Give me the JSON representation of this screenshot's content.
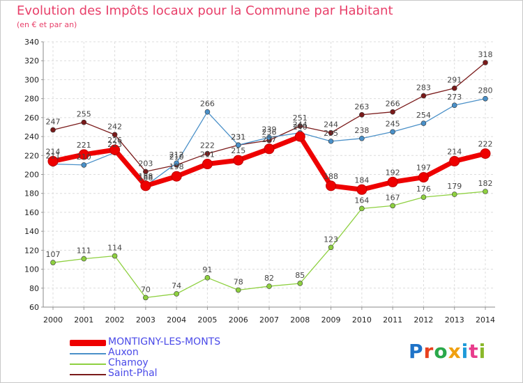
{
  "header": {
    "title": "Evolution des Impôts locaux pour la Commune par Habitant",
    "subtitle": "(en € et par an)"
  },
  "logo": {
    "text": "Proxiti",
    "colors": [
      "#1e73c8",
      "#e8401e",
      "#2aa84a",
      "#f0a010",
      "#1e9ad8",
      "#e83c8c",
      "#8ab82a"
    ]
  },
  "chart_data": {
    "type": "line",
    "x": [
      2000,
      2001,
      2002,
      2003,
      2004,
      2005,
      2006,
      2007,
      2008,
      2009,
      2010,
      2011,
      2012,
      2013,
      2014
    ],
    "ylim": [
      60,
      340
    ],
    "yticks": [
      60,
      80,
      100,
      120,
      140,
      160,
      180,
      200,
      220,
      240,
      260,
      280,
      300,
      320,
      340
    ],
    "grid": true,
    "legend": "bottom-left",
    "series": [
      {
        "name": "Saint-Phal",
        "color": "#7a1a1a",
        "values": [
          247,
          255,
          242,
          203,
          210,
          222,
          231,
          236,
          251,
          244,
          263,
          266,
          283,
          291,
          318
        ],
        "labels": [
          "247",
          "255",
          "242",
          "203",
          "210",
          "222",
          "231",
          "236",
          "251",
          "244",
          "263",
          "266",
          "283",
          "291",
          "318"
        ]
      },
      {
        "name": "Auxon",
        "color": "#4a90c8",
        "values": [
          211,
          210,
          223,
          188,
          212,
          266,
          231,
          239,
          244,
          235,
          238,
          245,
          254,
          273,
          280
        ],
        "labels": [
          "211",
          "210",
          "223",
          "188",
          "212",
          "266",
          "231",
          "239",
          "244",
          "235",
          "238",
          "245",
          "254",
          "273",
          "280"
        ]
      },
      {
        "name": "Chamoy",
        "color": "#8ed040",
        "values": [
          107,
          111,
          114,
          70,
          74,
          91,
          78,
          82,
          85,
          123,
          164,
          167,
          176,
          179,
          182
        ],
        "labels": [
          "107",
          "111",
          "114",
          "70",
          "74",
          "91",
          "78",
          "82",
          "85",
          "123",
          "164",
          "167",
          "176",
          "179",
          "182"
        ]
      },
      {
        "name": "MONTIGNY-LES-MONTS",
        "color": "#ee0000",
        "values": [
          214,
          221,
          226,
          188,
          198,
          211,
          215,
          227,
          240,
          188,
          184,
          192,
          197,
          214,
          222
        ],
        "labels": [
          "214",
          "221",
          "226",
          "188",
          "198",
          "211",
          "215",
          "227",
          "240",
          "188",
          "184",
          "192",
          "197",
          "214",
          "222"
        ]
      }
    ],
    "legend_order": [
      "MONTIGNY-LES-MONTS",
      "Auxon",
      "Chamoy",
      "Saint-Phal"
    ]
  }
}
